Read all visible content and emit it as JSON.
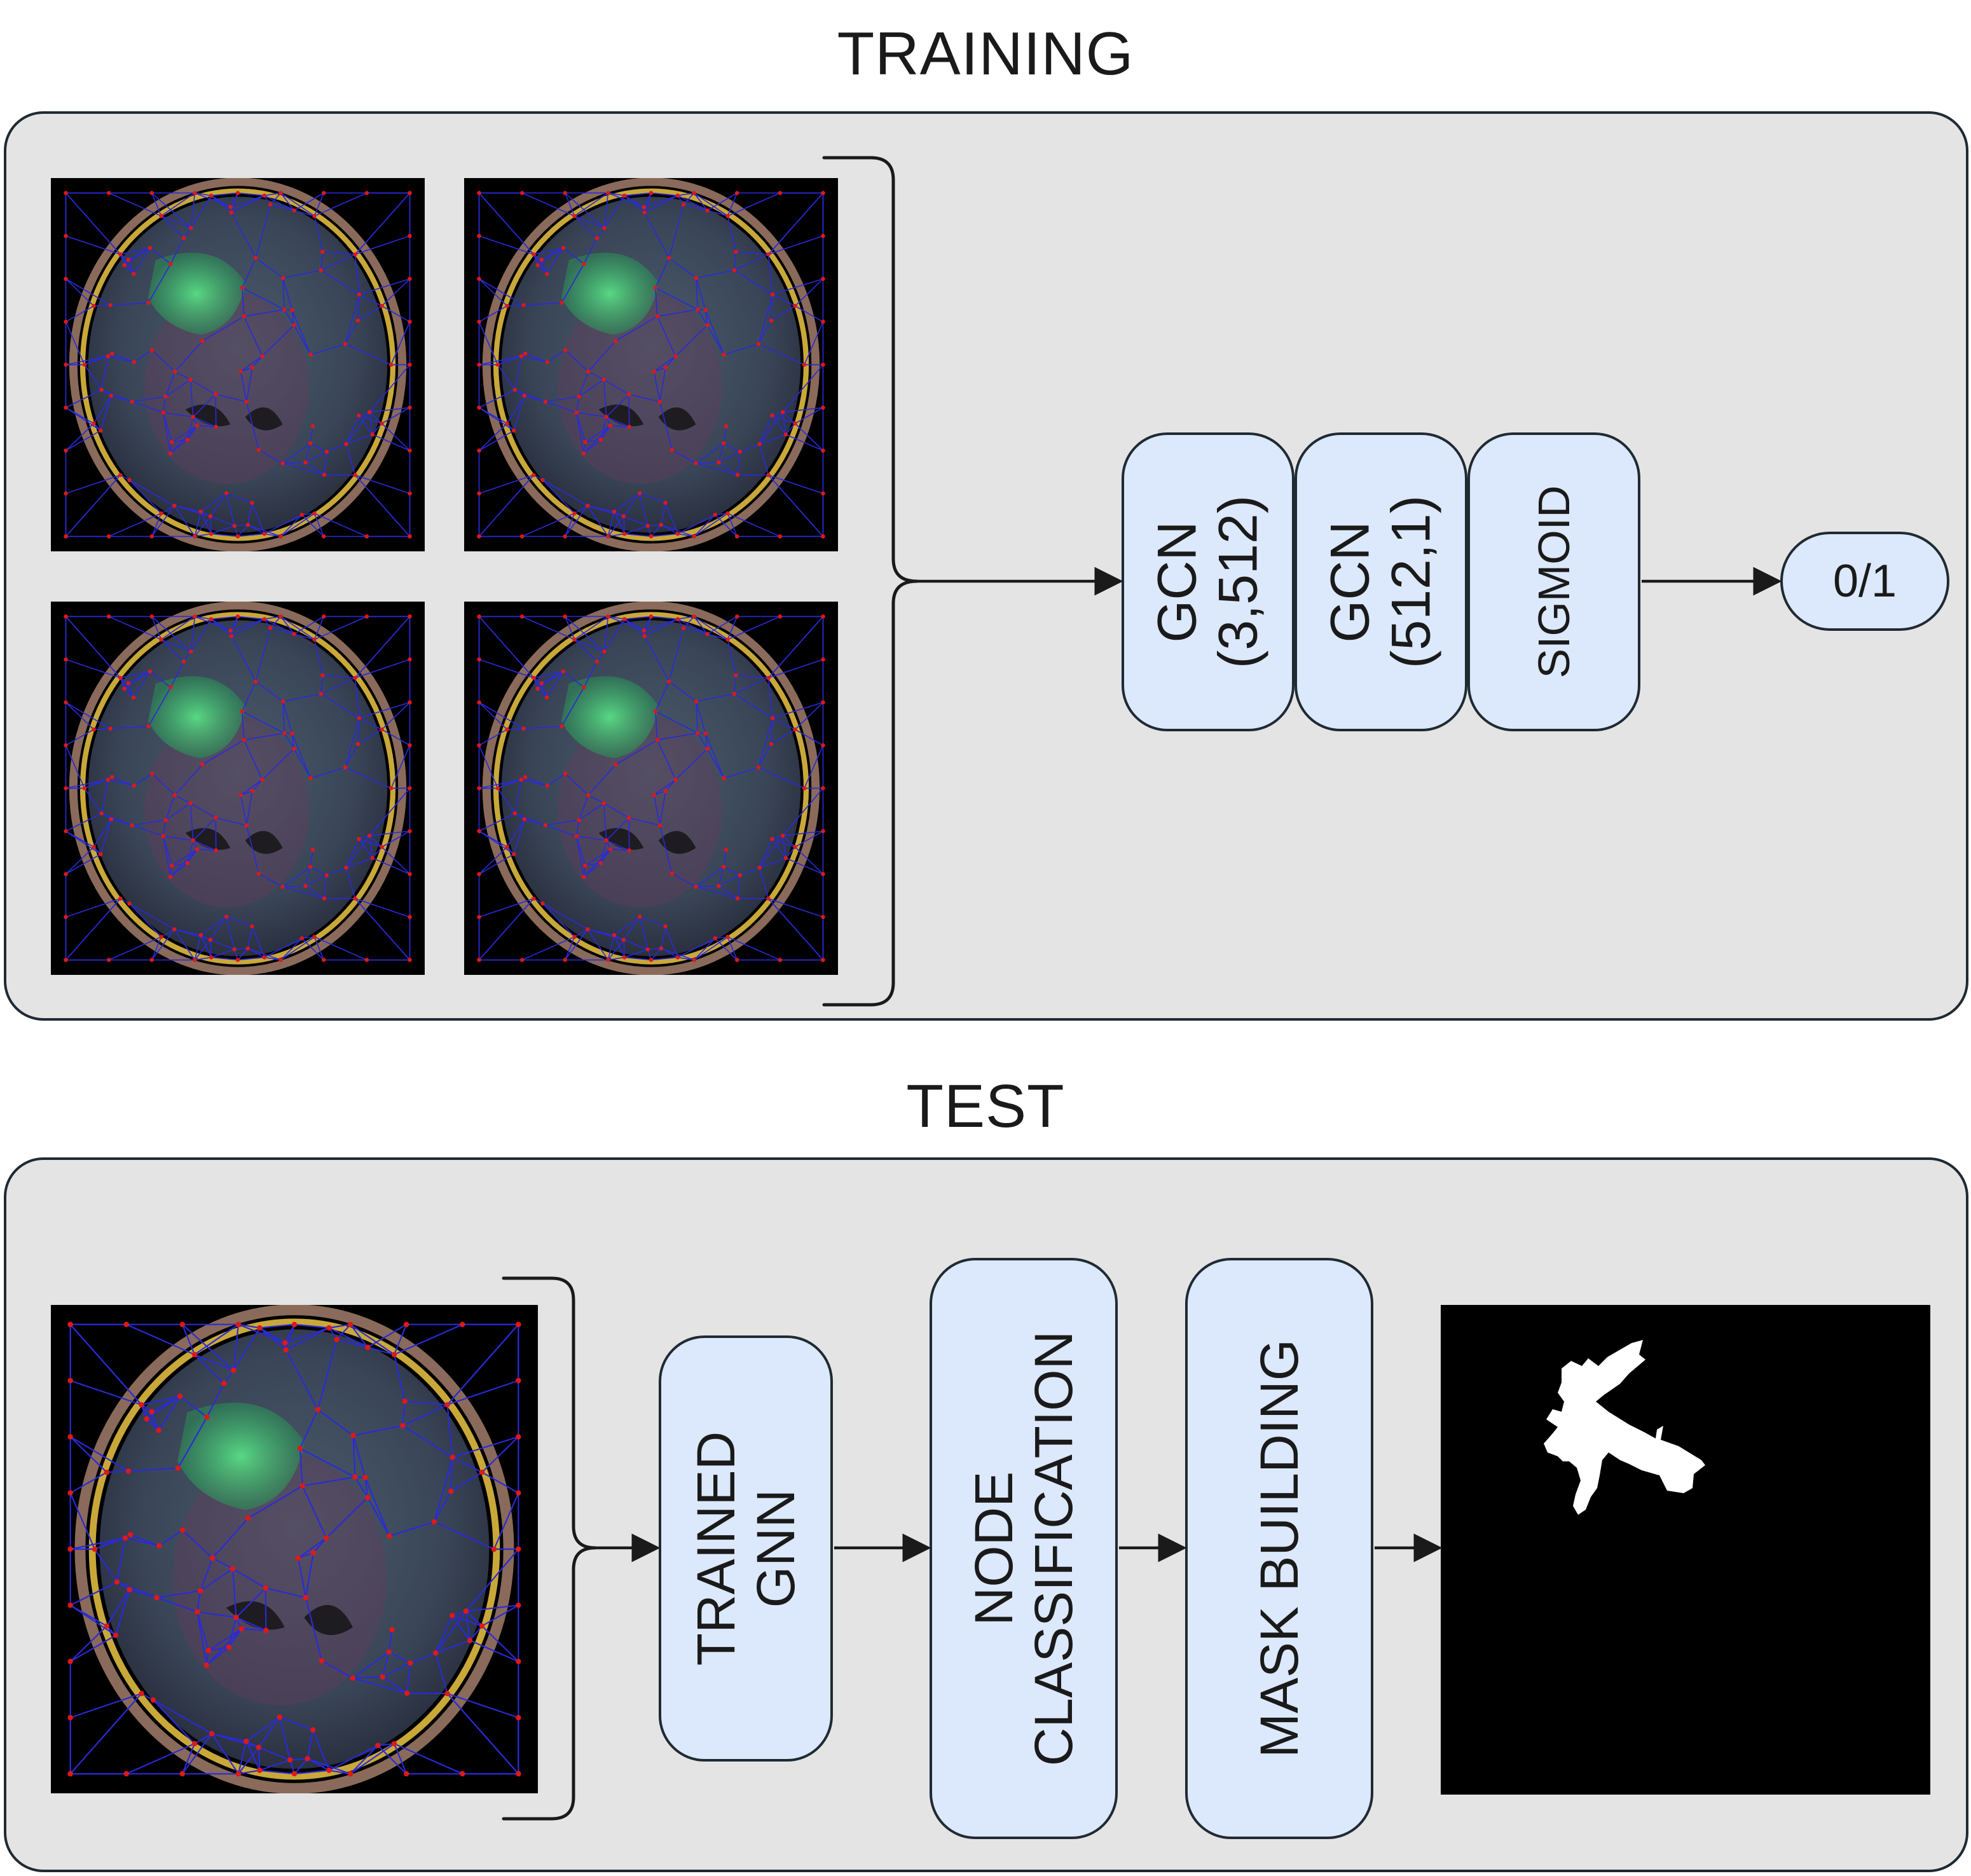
{
  "training": {
    "title": "TRAINING",
    "layers": [
      {
        "line1": "GCN",
        "line2": "(3,512)"
      },
      {
        "line1": "GCN",
        "line2": "(512,1)"
      },
      {
        "line1": "SIGMOID",
        "line2": ""
      }
    ],
    "output": "0/1"
  },
  "test": {
    "title": "TEST",
    "steps": [
      {
        "line1": "TRAINED",
        "line2": "GNN"
      },
      {
        "line1": "NODE",
        "line2": "CLASSIFICATION"
      },
      {
        "line1": "MASK BUILDING",
        "line2": ""
      }
    ]
  },
  "colors": {
    "panel_bg": "#e4e4e4",
    "block_bg": "#dce8fb",
    "graph_edges": "#2a2ad8",
    "graph_nodes": "#e01818",
    "tumor": "#3ccf6a"
  }
}
